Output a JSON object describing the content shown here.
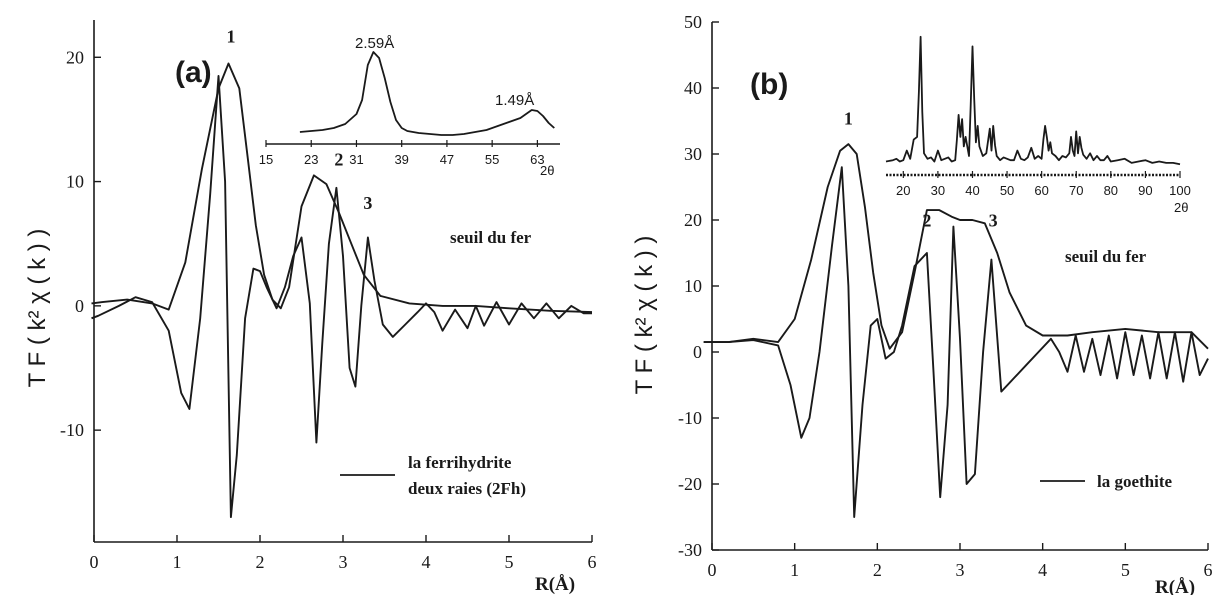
{
  "chart_data": [
    {
      "type": "line",
      "panel_label": "(a)",
      "ylabel": "T F ( k² χ ( k ) )",
      "xlabel": "R(Å)",
      "xlim": [
        0,
        6
      ],
      "ylim": [
        -19,
        23
      ],
      "xticks": [
        "0",
        "1",
        "2",
        "3",
        "4",
        "5",
        "6"
      ],
      "yticks": [
        {
          "value": 20,
          "label": "20"
        },
        {
          "value": 10,
          "label": "10"
        },
        {
          "value": 0,
          "label": "0"
        },
        {
          "value": -10,
          "label": "-10"
        }
      ],
      "annotation": "seuil du fer",
      "legend": [
        "la ferrihydrite",
        "deux raies (2Fh)"
      ],
      "peak_labels": [
        {
          "text": "1",
          "x": 1.65,
          "y": 21.2
        },
        {
          "text": "2",
          "x": 2.95,
          "y": 11.3
        },
        {
          "text": "3",
          "x": 3.3,
          "y": 7.8
        }
      ],
      "series": [
        {
          "role": "envelope",
          "x": [
            -0.03,
            0.1,
            0.4,
            0.7,
            0.9,
            1.1,
            1.3,
            1.5,
            1.62,
            1.75,
            1.85,
            1.95,
            2.05,
            2.15,
            2.25,
            2.35,
            2.5,
            2.65,
            2.8,
            2.95,
            3.1,
            3.25,
            3.45,
            3.8,
            4.2,
            4.6,
            5.0,
            5.5,
            6.0
          ],
          "y": [
            0.2,
            0.3,
            0.5,
            0.2,
            -0.3,
            3.5,
            11.0,
            17.5,
            19.5,
            17.5,
            12.0,
            6.5,
            2.5,
            0.5,
            -0.2,
            1.5,
            8.0,
            10.5,
            9.8,
            7.5,
            5.0,
            2.5,
            0.8,
            0.2,
            0,
            0,
            -0.2,
            -0.4,
            -0.5
          ]
        },
        {
          "role": "imaginary-part",
          "x": [
            -0.03,
            0.05,
            0.3,
            0.5,
            0.7,
            0.9,
            1.05,
            1.15,
            1.28,
            1.4,
            1.5,
            1.58,
            1.65,
            1.72,
            1.82,
            1.92,
            2.0,
            2.08,
            2.2,
            2.3,
            2.4,
            2.5,
            2.6,
            2.68,
            2.75,
            2.83,
            2.92,
            3.0,
            3.08,
            3.15,
            3.22,
            3.3,
            3.38,
            3.48,
            3.6,
            3.75,
            3.9,
            4.0,
            4.1,
            4.2,
            4.35,
            4.5,
            4.6,
            4.7,
            4.85,
            5.0,
            5.15,
            5.3,
            5.45,
            5.6,
            5.75,
            5.9,
            6.0
          ],
          "y": [
            -1.0,
            -0.8,
            0,
            0.7,
            0.3,
            -2.0,
            -7.0,
            -8.3,
            -1.0,
            9.0,
            18.5,
            10.0,
            -17.0,
            -12.0,
            -1.0,
            3.0,
            2.8,
            1.5,
            -0.2,
            1.5,
            4.0,
            5.5,
            0.2,
            -11.0,
            -3.0,
            5.0,
            9.5,
            4.0,
            -5.0,
            -6.5,
            0,
            5.5,
            2.0,
            -1.5,
            -2.5,
            -1.5,
            -0.5,
            0.2,
            -0.5,
            -2.0,
            -0.3,
            -1.8,
            0,
            -1.6,
            0.3,
            -1.5,
            0.2,
            -1.0,
            0.2,
            -1.0,
            0,
            -0.6,
            -0.6
          ]
        }
      ]
    },
    {
      "type": "line",
      "panel_label": "(b)",
      "ylabel": "T F ( k² χ ( k ) )",
      "xlabel": "R(Å)",
      "xlim": [
        0,
        6
      ],
      "ylim": [
        -30,
        50
      ],
      "xticks": [
        "0",
        "1",
        "2",
        "3",
        "4",
        "5",
        "6"
      ],
      "yticks": [
        {
          "value": 50,
          "label": "50"
        },
        {
          "value": 40,
          "label": "40"
        },
        {
          "value": 30,
          "label": "30"
        },
        {
          "value": 20,
          "label": "20"
        },
        {
          "value": 10,
          "label": "10"
        },
        {
          "value": 0,
          "label": "0"
        },
        {
          "value": -10,
          "label": "-10"
        },
        {
          "value": -20,
          "label": "-20"
        },
        {
          "value": -30,
          "label": "-30"
        }
      ],
      "annotation": "seuil du fer",
      "legend": [
        "la goethite"
      ],
      "peak_labels": [
        {
          "text": "1",
          "x": 1.65,
          "y": 34.5
        },
        {
          "text": "2",
          "x": 2.6,
          "y": 19.0
        },
        {
          "text": "3",
          "x": 3.4,
          "y": 19.0
        }
      ],
      "series": [
        {
          "role": "envelope",
          "x": [
            -0.1,
            0.2,
            0.5,
            0.8,
            1.0,
            1.2,
            1.4,
            1.55,
            1.65,
            1.75,
            1.85,
            1.95,
            2.05,
            2.15,
            2.3,
            2.45,
            2.6,
            2.75,
            2.9,
            3.0,
            3.15,
            3.3,
            3.45,
            3.6,
            3.8,
            4.0,
            4.3,
            4.6,
            5.0,
            5.4,
            5.8,
            6.0
          ],
          "y": [
            1.5,
            1.5,
            2.0,
            1.5,
            5.0,
            14.0,
            25.0,
            30.5,
            31.5,
            30.0,
            22.0,
            12.0,
            4.0,
            0.5,
            3.0,
            12.0,
            21.5,
            21.5,
            20.5,
            20.0,
            20.0,
            19.5,
            15.0,
            9.0,
            4.0,
            2.5,
            2.5,
            3.0,
            3.5,
            3.0,
            3.0,
            0.5
          ]
        },
        {
          "role": "imaginary-part",
          "x": [
            -0.1,
            0.2,
            0.5,
            0.8,
            0.95,
            1.08,
            1.18,
            1.3,
            1.45,
            1.57,
            1.65,
            1.72,
            1.82,
            1.92,
            2.0,
            2.1,
            2.2,
            2.3,
            2.45,
            2.6,
            2.68,
            2.76,
            2.85,
            2.92,
            3.0,
            3.08,
            3.18,
            3.28,
            3.38,
            3.5,
            3.65,
            3.8,
            3.95,
            4.1,
            4.2,
            4.3,
            4.4,
            4.5,
            4.6,
            4.7,
            4.8,
            4.9,
            5.0,
            5.1,
            5.2,
            5.3,
            5.4,
            5.5,
            5.6,
            5.7,
            5.8,
            5.9,
            6.0
          ],
          "y": [
            1.5,
            1.5,
            1.8,
            1.0,
            -5.0,
            -13.0,
            -10.0,
            0,
            16.0,
            28.0,
            10.0,
            -25.0,
            -8.0,
            4.0,
            5.0,
            -1.0,
            0,
            4.0,
            13.0,
            15.0,
            -3.0,
            -22.0,
            -8.0,
            19.0,
            2.0,
            -20.0,
            -18.5,
            0,
            14.0,
            -6.0,
            -4.0,
            -2.0,
            0,
            2.0,
            0,
            -3.0,
            2.5,
            -3.0,
            2.0,
            -3.5,
            2.5,
            -4.0,
            3.0,
            -3.5,
            2.5,
            -4.0,
            3.0,
            -4.0,
            3.0,
            -4.5,
            3.0,
            -3.5,
            -1.0
          ]
        }
      ]
    }
  ],
  "insets": [
    {
      "type": "line",
      "xlabel": "2θ",
      "xticks": [
        "15",
        "23",
        "31",
        "39",
        "47",
        "55",
        "63"
      ],
      "peak_labels": [
        "2.59Å",
        "1.49Å"
      ],
      "series": [
        {
          "x": [
            21,
            23,
            25,
            27,
            29,
            31,
            32,
            33,
            34,
            35,
            36,
            37,
            38,
            39,
            40,
            42,
            44,
            46,
            48,
            50,
            52,
            54,
            56,
            58,
            60,
            62,
            63,
            64,
            65,
            66
          ],
          "y": [
            8,
            9,
            10,
            12,
            16,
            26,
            40,
            75,
            88,
            82,
            62,
            38,
            20,
            12,
            9,
            7,
            6,
            5,
            5,
            6,
            8,
            10,
            14,
            18,
            22,
            30,
            29,
            24,
            17,
            12
          ]
        }
      ]
    },
    {
      "type": "line",
      "xlabel": "2θ",
      "xticks": [
        "20",
        "30",
        "40",
        "50",
        "60",
        "70",
        "80",
        "90",
        "100"
      ],
      "series": [
        {
          "x": [
            15,
            17,
            18,
            19,
            20,
            21,
            22,
            23,
            24,
            24.5,
            25,
            25.5,
            26,
            27,
            28,
            29,
            30,
            31,
            32,
            33,
            34,
            35,
            35.5,
            36,
            36.5,
            37,
            37.5,
            38,
            39,
            39.5,
            40,
            40.5,
            41,
            41.5,
            42,
            43,
            44,
            45,
            45.5,
            46,
            46.5,
            47,
            48,
            49,
            50,
            51,
            52,
            53,
            54,
            55,
            56,
            57,
            58,
            59,
            60,
            60.5,
            61,
            61.5,
            62,
            62.5,
            63,
            64,
            65,
            66,
            67,
            68,
            68.5,
            69,
            69.5,
            70,
            70.5,
            71,
            71.5,
            72,
            73,
            74,
            75,
            76,
            77,
            78,
            79,
            80,
            82,
            84,
            86,
            88,
            90,
            92,
            94,
            96,
            98,
            100
          ],
          "y": [
            4,
            5,
            6,
            4,
            5,
            12,
            6,
            20,
            22,
            55,
            95,
            40,
            10,
            6,
            7,
            4,
            12,
            5,
            6,
            7,
            4,
            5,
            20,
            38,
            22,
            35,
            15,
            22,
            8,
            45,
            88,
            50,
            18,
            30,
            15,
            8,
            10,
            28,
            12,
            30,
            16,
            8,
            5,
            7,
            6,
            5,
            5,
            12,
            6,
            5,
            7,
            14,
            6,
            8,
            6,
            20,
            30,
            22,
            12,
            18,
            10,
            8,
            5,
            8,
            7,
            10,
            22,
            12,
            8,
            26,
            10,
            22,
            14,
            9,
            6,
            10,
            5,
            8,
            5,
            5,
            8,
            4,
            5,
            6,
            3,
            4,
            5,
            3,
            4,
            3,
            3,
            2
          ]
        }
      ]
    }
  ]
}
